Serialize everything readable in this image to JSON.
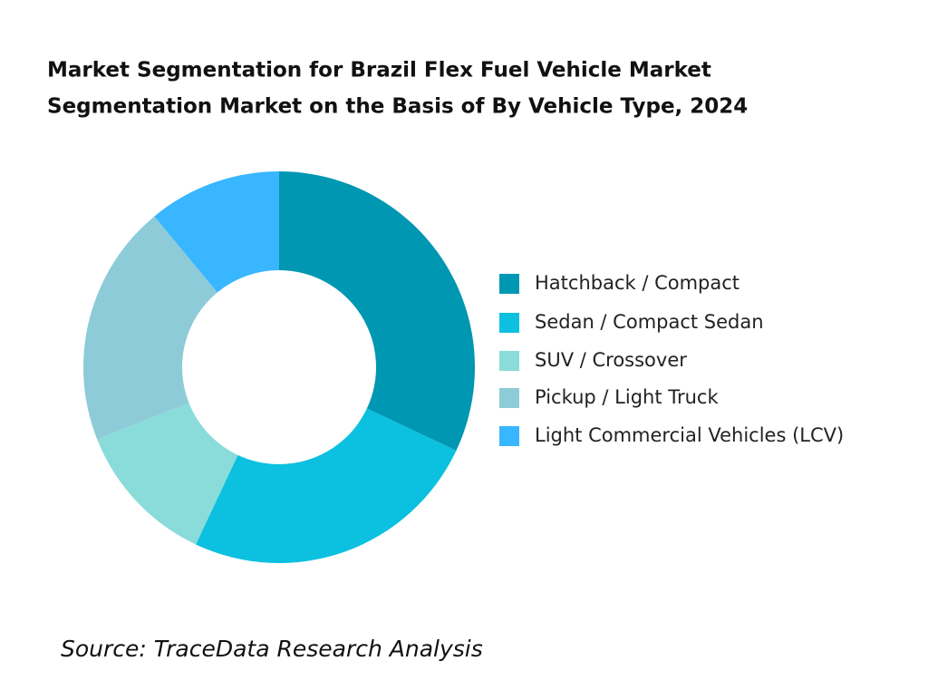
{
  "chart_data": {
    "type": "donut",
    "title": [
      "Market Segmentation for Brazil Flex Fuel Vehicle Market",
      "Segmentation Market on the Basis of By Vehicle Type, 2024"
    ],
    "categories": [
      "Hatchback / Compact",
      "Sedan / Compact Sedan",
      "SUV / Crossover",
      "Pickup / Light Truck",
      "Light Commercial Vehicles (LCV)"
    ],
    "values": [
      32,
      25,
      12,
      20,
      11
    ],
    "colors": [
      "#0097b2",
      "#0cc0df",
      "#89dcd9",
      "#8ecbd8",
      "#38b6ff"
    ],
    "legend": "right",
    "source": "Source: TraceData Research Analysis"
  }
}
